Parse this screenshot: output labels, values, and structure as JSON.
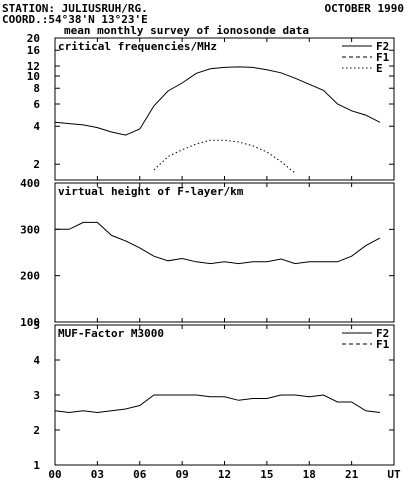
{
  "header": {
    "station": "STATION: JULIUSRUH/RG.",
    "month": "OCTOBER 1990",
    "coord": "COORD.:54°38'N 13°23'E",
    "subtitle": "mean monthly survey of ionosonde data"
  },
  "x_axis": {
    "tick_labels": [
      "00",
      "03",
      "06",
      "09",
      "12",
      "15",
      "18",
      "21",
      "UT"
    ],
    "range": [
      0,
      24
    ]
  },
  "chart_data": [
    {
      "type": "line",
      "title": "critical frequencies/MHz",
      "scale": "log",
      "ylim": [
        1.5,
        20
      ],
      "y_ticks": [
        2,
        4,
        6,
        8,
        10,
        12,
        16,
        20
      ],
      "legend_position": "top-right",
      "series": [
        {
          "name": "F2",
          "style": "solid",
          "x": [
            0,
            1,
            2,
            3,
            4,
            5,
            6,
            7,
            8,
            9,
            10,
            11,
            12,
            13,
            14,
            15,
            16,
            17,
            18,
            19,
            20,
            21,
            22,
            23
          ],
          "y": [
            4.3,
            4.2,
            4.1,
            3.9,
            3.6,
            3.4,
            3.8,
            5.8,
            7.6,
            8.8,
            10.5,
            11.4,
            11.7,
            11.8,
            11.7,
            11.2,
            10.6,
            9.6,
            8.6,
            7.7,
            6.0,
            5.3,
            4.9,
            4.3
          ]
        },
        {
          "name": "F1",
          "style": "dashed",
          "x": [],
          "y": []
        },
        {
          "name": "E",
          "style": "dotted",
          "x": [
            7,
            8,
            9,
            10,
            11,
            12,
            13,
            14,
            15,
            16,
            17
          ],
          "y": [
            1.8,
            2.3,
            2.6,
            2.9,
            3.1,
            3.1,
            3.0,
            2.8,
            2.5,
            2.1,
            1.7
          ]
        }
      ]
    },
    {
      "type": "line",
      "title": "virtual height of F-layer/km",
      "ylim": [
        100,
        400
      ],
      "y_ticks": [
        100,
        200,
        300,
        400
      ],
      "series": [
        {
          "style": "solid",
          "x": [
            0,
            1,
            2,
            3,
            4,
            5,
            6,
            7,
            8,
            9,
            10,
            11,
            12,
            13,
            14,
            15,
            16,
            17,
            18,
            19,
            20,
            21,
            22,
            23
          ],
          "y": [
            300,
            300,
            315,
            315,
            287,
            275,
            260,
            242,
            232,
            237,
            230,
            226,
            230,
            226,
            230,
            230,
            236,
            226,
            230,
            230,
            230,
            242,
            265,
            281
          ]
        }
      ]
    },
    {
      "type": "line",
      "title": "MUF-Factor M3000",
      "ylim": [
        1,
        5
      ],
      "y_ticks": [
        1,
        2,
        3,
        4,
        5
      ],
      "legend_position": "top-right",
      "series": [
        {
          "name": "F2",
          "style": "solid",
          "x": [
            0,
            1,
            2,
            3,
            4,
            5,
            6,
            7,
            8,
            9,
            10,
            11,
            12,
            13,
            14,
            15,
            16,
            17,
            18,
            19,
            20,
            21,
            22,
            23
          ],
          "y": [
            2.55,
            2.5,
            2.55,
            2.5,
            2.55,
            2.6,
            2.7,
            3.0,
            3.0,
            3.0,
            3.0,
            2.95,
            2.95,
            2.85,
            2.9,
            2.9,
            3.0,
            3.0,
            2.95,
            3.0,
            2.8,
            2.8,
            2.55,
            2.5
          ]
        },
        {
          "name": "F1",
          "style": "dashed",
          "x": [],
          "y": []
        }
      ]
    }
  ]
}
